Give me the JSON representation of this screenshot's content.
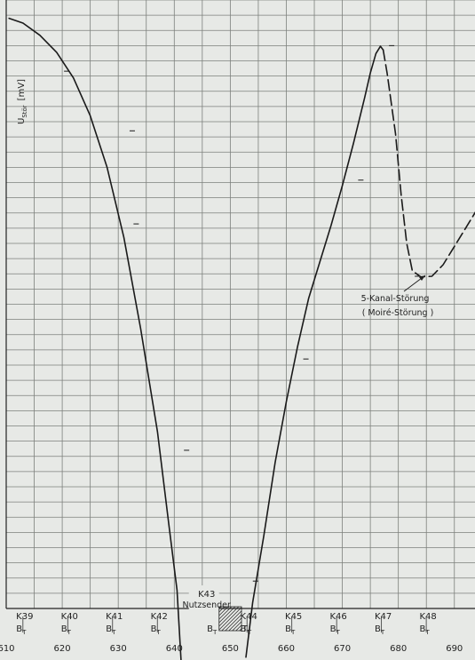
{
  "chart_data": {
    "type": "line",
    "title": "",
    "ylabel": "U",
    "ylabel_sub": "Stör",
    "ylabel_unit": "[mV]",
    "xlabel": "",
    "xlim": [
      610,
      694
    ],
    "ylim": [
      0,
      100
    ],
    "grid": true,
    "x_ticks": [
      610,
      620,
      630,
      640,
      650,
      660,
      670,
      680,
      690
    ],
    "series": [
      {
        "style": "solid",
        "x": [
          610.5,
          613,
          616,
          619,
          622,
          625,
          628,
          631,
          634,
          637,
          639,
          640.5,
          641.3
        ],
        "y": [
          97,
          96.2,
          94.2,
          91.4,
          87.2,
          81,
          72.5,
          61,
          46,
          29,
          14,
          3,
          -10
        ]
      },
      {
        "style": "solid",
        "x": [
          652.8,
          654,
          656,
          658,
          660,
          662,
          664,
          666,
          668,
          670,
          672,
          674,
          675,
          676,
          676.8,
          677.3
        ],
        "y": [
          -8,
          1,
          12,
          24,
          34,
          43,
          51,
          57,
          63,
          69.5,
          76.5,
          84,
          88,
          91.2,
          92.4,
          91.8
        ]
      },
      {
        "style": "dashed",
        "x": [
          677.3,
          678,
          679.5,
          680.5,
          681.5,
          682.5,
          684,
          686,
          688,
          690,
          692,
          694
        ],
        "y": [
          91.8,
          88,
          78,
          68,
          60,
          55.5,
          54.5,
          54.6,
          56.5,
          59.5,
          62.5,
          65.5
        ]
      }
    ],
    "markers": [
      {
        "x": 620.8,
        "y": 88.3
      },
      {
        "x": 632.5,
        "y": 78.5
      },
      {
        "x": 633.2,
        "y": 63.2
      },
      {
        "x": 642.2,
        "y": 26
      },
      {
        "x": 654.5,
        "y": 4.5
      },
      {
        "x": 663.5,
        "y": 41
      },
      {
        "x": 673.3,
        "y": 70.4
      },
      {
        "x": 678.8,
        "y": 92.5
      },
      {
        "x": 683.4,
        "y": 54.6
      }
    ],
    "channels": [
      {
        "label": "K39",
        "x": 613.3
      },
      {
        "label": "K40",
        "x": 621.3
      },
      {
        "label": "K41",
        "x": 629.3
      },
      {
        "label": "K42",
        "x": 637.3
      },
      {
        "label": "K44",
        "x": 653.3
      },
      {
        "label": "K45",
        "x": 661.3
      },
      {
        "label": "K46",
        "x": 669.3
      },
      {
        "label": "K47",
        "x": 677.3
      },
      {
        "label": "K48",
        "x": 685.3
      }
    ],
    "channel_sublabel": "B",
    "channel_sublabel_sub": "T",
    "wanted_channel": {
      "label": "K43",
      "name": "Nutzsender",
      "x": 645.3,
      "b_label": "B",
      "b_sub": "T",
      "t_label": "T",
      "t_sub": "T"
    },
    "annotations": [
      {
        "text": "5-Kanal-Störung"
      },
      {
        "text": "( Moiré-Störung )"
      }
    ]
  }
}
